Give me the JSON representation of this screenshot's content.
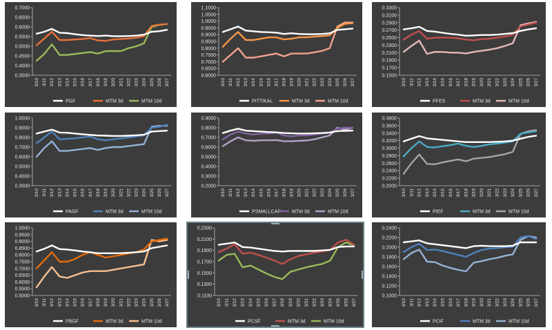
{
  "colors": {
    "plot_bg": "#3c3c3c",
    "axis": "#bdbdbd"
  },
  "x_labels": [
    "3/10",
    "3/11",
    "3/12",
    "3/13",
    "3/14",
    "3/15",
    "3/16",
    "3/17",
    "3/18",
    "3/19",
    "3/20",
    "3/21",
    "3/22",
    "3/23",
    "3/24",
    "3/25",
    "3/26",
    "3/27"
  ],
  "legend_labels": [
    "MTM 3d",
    "MTM 10d"
  ],
  "chart_data": [
    {
      "type": "line",
      "ylim": [
        0.35,
        0.7
      ],
      "yticks": [
        "0.3500",
        "0.4000",
        "0.4500",
        "0.5000",
        "0.5500",
        "0.6000",
        "0.6500",
        "0.7000"
      ],
      "series": [
        {
          "name": "PGF",
          "color": "#ffffff",
          "values": [
            0.565,
            0.575,
            0.59,
            0.57,
            0.568,
            0.562,
            0.558,
            0.555,
            0.553,
            0.555,
            0.552,
            0.552,
            0.553,
            0.555,
            0.56,
            0.575,
            0.578,
            0.585
          ]
        },
        {
          "name": "MTM 3d",
          "color": "#e8703a",
          "values": [
            0.505,
            0.54,
            0.575,
            0.532,
            0.532,
            0.535,
            0.538,
            0.542,
            0.53,
            0.528,
            0.535,
            0.538,
            0.54,
            0.545,
            0.552,
            0.605,
            0.612,
            0.615
          ]
        },
        {
          "name": "MTM 10d",
          "color": "#9bbb59",
          "values": [
            0.425,
            0.46,
            0.51,
            0.455,
            0.455,
            0.46,
            0.465,
            0.47,
            0.462,
            0.475,
            0.475,
            0.475,
            0.49,
            0.5,
            0.515,
            0.6,
            0.61,
            0.615
          ]
        }
      ]
    },
    {
      "type": "line",
      "ylim": [
        0.6,
        1.1
      ],
      "yticks": [
        "0.6000",
        "0.6500",
        "0.7000",
        "0.7500",
        "0.8000",
        "0.8500",
        "0.9000",
        "0.9500",
        "1.0000",
        "1.0500",
        "1.1000"
      ],
      "series": [
        {
          "name": "PITTIKAL",
          "color": "#ffffff",
          "values": [
            0.92,
            0.94,
            0.96,
            0.93,
            0.925,
            0.92,
            0.918,
            0.915,
            0.905,
            0.91,
            0.905,
            0.903,
            0.903,
            0.905,
            0.91,
            0.935,
            0.94,
            0.945
          ]
        },
        {
          "name": "MTM 3d",
          "color": "#f79646",
          "values": [
            0.81,
            0.87,
            0.92,
            0.86,
            0.86,
            0.87,
            0.88,
            0.88,
            0.865,
            0.87,
            0.88,
            0.88,
            0.885,
            0.89,
            0.895,
            0.95,
            0.98,
            0.985
          ]
        },
        {
          "name": "MTM 10d",
          "color": "#f4a28c",
          "values": [
            0.7,
            0.75,
            0.8,
            0.73,
            0.73,
            0.74,
            0.75,
            0.76,
            0.74,
            0.76,
            0.76,
            0.76,
            0.77,
            0.78,
            0.8,
            0.96,
            0.99,
            0.99
          ]
        }
      ]
    },
    {
      "type": "line",
      "ylim": [
        0.15,
        0.33
      ],
      "yticks": [
        "0.1500",
        "0.1700",
        "0.1900",
        "0.2100",
        "0.2300",
        "0.2500",
        "0.2700",
        "0.2900",
        "0.3100",
        "0.3300"
      ],
      "series": [
        {
          "name": "PFES",
          "color": "#ffffff",
          "values": [
            0.272,
            0.275,
            0.279,
            0.268,
            0.266,
            0.263,
            0.26,
            0.258,
            0.255,
            0.256,
            0.257,
            0.257,
            0.258,
            0.26,
            0.262,
            0.268,
            0.272,
            0.275
          ]
        },
        {
          "name": "MTM 3d",
          "color": "#c0504d",
          "values": [
            0.245,
            0.258,
            0.268,
            0.247,
            0.25,
            0.25,
            0.25,
            0.248,
            0.245,
            0.243,
            0.246,
            0.247,
            0.25,
            0.253,
            0.258,
            0.28,
            0.285,
            0.29
          ]
        },
        {
          "name": "MTM 10d",
          "color": "#e6b9b8",
          "values": [
            0.212,
            0.228,
            0.242,
            0.207,
            0.212,
            0.212,
            0.21,
            0.21,
            0.208,
            0.212,
            0.215,
            0.218,
            0.222,
            0.228,
            0.235,
            0.283,
            0.288,
            0.292
          ]
        }
      ]
    },
    {
      "type": "line",
      "ylim": [
        0.3,
        1.0
      ],
      "yticks": [
        "0.3000",
        "0.4000",
        "0.5000",
        "0.6000",
        "0.7000",
        "0.8000",
        "0.9000",
        "1.0000"
      ],
      "series": [
        {
          "name": "PAGF",
          "color": "#ffffff",
          "values": [
            0.84,
            0.86,
            0.88,
            0.85,
            0.848,
            0.84,
            0.832,
            0.826,
            0.82,
            0.818,
            0.815,
            0.815,
            0.818,
            0.822,
            0.828,
            0.86,
            0.865,
            0.87
          ]
        },
        {
          "name": "MTM 3d",
          "color": "#4f81bd",
          "values": [
            0.74,
            0.8,
            0.86,
            0.78,
            0.785,
            0.79,
            0.8,
            0.81,
            0.78,
            0.77,
            0.78,
            0.79,
            0.8,
            0.81,
            0.82,
            0.9,
            0.91,
            0.93
          ]
        },
        {
          "name": "MTM 10d",
          "color": "#95b3d7",
          "values": [
            0.6,
            0.69,
            0.76,
            0.66,
            0.66,
            0.67,
            0.68,
            0.69,
            0.67,
            0.69,
            0.7,
            0.7,
            0.71,
            0.72,
            0.73,
            0.91,
            0.92,
            0.92
          ]
        }
      ]
    },
    {
      "type": "line",
      "ylim": [
        0.2,
        0.9
      ],
      "yticks": [
        "0.2000",
        "0.3000",
        "0.4000",
        "0.5000",
        "0.6000",
        "0.7000",
        "0.8000",
        "0.9000"
      ],
      "series": [
        {
          "name": "PSMALLCAP",
          "color": "#ffffff",
          "values": [
            0.745,
            0.77,
            0.79,
            0.77,
            0.765,
            0.76,
            0.755,
            0.752,
            0.745,
            0.742,
            0.74,
            0.74,
            0.742,
            0.745,
            0.75,
            0.765,
            0.768,
            0.77
          ]
        },
        {
          "name": "MTM 3d",
          "color": "#8064a2",
          "values": [
            0.68,
            0.73,
            0.76,
            0.74,
            0.73,
            0.74,
            0.74,
            0.75,
            0.72,
            0.71,
            0.72,
            0.72,
            0.73,
            0.74,
            0.75,
            0.79,
            0.8,
            0.8
          ]
        },
        {
          "name": "MTM 10d",
          "color": "#b3a2c7",
          "values": [
            0.61,
            0.66,
            0.7,
            0.67,
            0.665,
            0.67,
            0.67,
            0.672,
            0.66,
            0.66,
            0.665,
            0.668,
            0.68,
            0.7,
            0.72,
            0.8,
            0.78,
            0.8
          ]
        }
      ]
    },
    {
      "type": "line",
      "ylim": [
        0.2,
        0.38
      ],
      "yticks": [
        "0.2000",
        "0.2200",
        "0.2400",
        "0.2600",
        "0.2800",
        "0.3000",
        "0.3200",
        "0.3400",
        "0.3600",
        "0.3800"
      ],
      "series": [
        {
          "name": "PIEF",
          "color": "#ffffff",
          "values": [
            0.318,
            0.325,
            0.332,
            0.326,
            0.324,
            0.322,
            0.32,
            0.318,
            0.316,
            0.316,
            0.316,
            0.316,
            0.317,
            0.318,
            0.32,
            0.325,
            0.33,
            0.333
          ]
        },
        {
          "name": "MTM 3d",
          "color": "#4bacc6",
          "values": [
            0.278,
            0.3,
            0.318,
            0.303,
            0.302,
            0.305,
            0.308,
            0.312,
            0.306,
            0.303,
            0.306,
            0.31,
            0.312,
            0.315,
            0.318,
            0.338,
            0.342,
            0.345
          ]
        },
        {
          "name": "MTM 10d",
          "color": "#a5a5a5",
          "values": [
            0.232,
            0.26,
            0.283,
            0.258,
            0.257,
            0.262,
            0.266,
            0.27,
            0.265,
            0.272,
            0.274,
            0.276,
            0.28,
            0.284,
            0.29,
            0.338,
            0.345,
            0.348
          ]
        }
      ]
    },
    {
      "type": "line",
      "ylim": [
        0.5,
        1.0
      ],
      "yticks": [
        "0.5000",
        "0.5500",
        "0.6000",
        "0.6500",
        "0.7000",
        "0.7500",
        "0.8000",
        "0.8500",
        "0.9000",
        "0.9500",
        "1.0000"
      ],
      "series": [
        {
          "name": "PBGF",
          "color": "#ffffff",
          "values": [
            0.825,
            0.845,
            0.87,
            0.843,
            0.84,
            0.833,
            0.825,
            0.82,
            0.812,
            0.812,
            0.812,
            0.813,
            0.816,
            0.82,
            0.825,
            0.85,
            0.86,
            0.87
          ]
        },
        {
          "name": "MTM 3d",
          "color": "#e46c0a",
          "values": [
            0.7,
            0.76,
            0.82,
            0.75,
            0.75,
            0.77,
            0.8,
            0.82,
            0.8,
            0.78,
            0.79,
            0.8,
            0.81,
            0.82,
            0.84,
            0.9,
            0.91,
            0.92
          ]
        },
        {
          "name": "MTM 10d",
          "color": "#fac090",
          "values": [
            0.56,
            0.64,
            0.71,
            0.64,
            0.63,
            0.65,
            0.67,
            0.68,
            0.68,
            0.68,
            0.69,
            0.7,
            0.71,
            0.72,
            0.73,
            0.91,
            0.9,
            0.91
          ]
        }
      ]
    },
    {
      "type": "line",
      "ylim": [
        0.11,
        0.23
      ],
      "yticks": [
        "0.1100",
        "0.1300",
        "0.1500",
        "0.1700",
        "0.1900",
        "0.2100",
        "0.2300"
      ],
      "series": [
        {
          "name": "PCSF",
          "color": "#ffffff",
          "values": [
            0.2,
            0.202,
            0.204,
            0.196,
            0.195,
            0.193,
            0.191,
            0.189,
            0.188,
            0.189,
            0.189,
            0.189,
            0.189,
            0.19,
            0.191,
            0.196,
            0.197,
            0.197
          ]
        },
        {
          "name": "MTM 3d",
          "color": "#c0504d",
          "values": [
            0.187,
            0.193,
            0.201,
            0.184,
            0.186,
            0.182,
            0.177,
            0.172,
            0.166,
            0.174,
            0.18,
            0.183,
            0.186,
            0.188,
            0.191,
            0.204,
            0.209,
            0.2
          ]
        },
        {
          "name": "MTM 10d",
          "color": "#9bbb59",
          "values": [
            0.172,
            0.182,
            0.184,
            0.16,
            0.163,
            0.156,
            0.149,
            0.143,
            0.139,
            0.152,
            0.156,
            0.16,
            0.163,
            0.166,
            0.172,
            0.196,
            0.204,
            0.199
          ]
        }
      ]
    },
    {
      "type": "line",
      "ylim": [
        0.1,
        0.24
      ],
      "yticks": [
        "0.1000",
        "0.1200",
        "0.1400",
        "0.1600",
        "0.1800",
        "0.2000",
        "0.2200",
        "0.2400"
      ],
      "series": [
        {
          "name": "PCIF",
          "color": "#ffffff",
          "values": [
            0.21,
            0.212,
            0.214,
            0.208,
            0.206,
            0.204,
            0.202,
            0.2,
            0.198,
            0.202,
            0.203,
            0.202,
            0.202,
            0.202,
            0.203,
            0.21,
            0.21,
            0.21
          ]
        },
        {
          "name": "MTM 3d",
          "color": "#4f81bd",
          "values": [
            0.19,
            0.2,
            0.207,
            0.194,
            0.195,
            0.192,
            0.188,
            0.184,
            0.18,
            0.188,
            0.194,
            0.197,
            0.198,
            0.2,
            0.201,
            0.22,
            0.223,
            0.217
          ]
        },
        {
          "name": "MTM 10d",
          "color": "#95b3d7",
          "values": [
            0.175,
            0.188,
            0.195,
            0.17,
            0.169,
            0.162,
            0.157,
            0.153,
            0.15,
            0.168,
            0.171,
            0.175,
            0.178,
            0.182,
            0.185,
            0.215,
            0.223,
            0.22
          ]
        }
      ]
    }
  ]
}
